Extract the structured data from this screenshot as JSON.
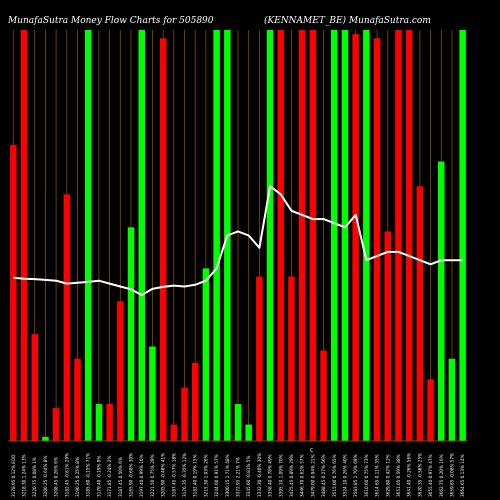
{
  "header": {
    "left": "MunafaSutra  Money  Flow  Charts for 505890",
    "right": "(KENNAMET_BE)  MunafaSutra.com"
  },
  "chart_data": {
    "type": "bar",
    "title": "MunafaSutra  Money  Flow  Charts for 505890",
    "subtitle": "(KENNAMET_BE)  MunafaSutra.com",
    "categories": [
      "3178.95 0.12% EOD",
      "3218.30 1.24% 13%",
      "3220.75 0.08% 1%",
      "3200.25 -0.64% 8%",
      "3208.45 0.26% 6%",
      "3182.45 -0.81% 29%",
      "3190.25 0.25% 8%",
      "3185.60 -0.15% 71%",
      "3179.40 -0.19% 9%",
      "3171.85 -0.24% 2%",
      "3187.45 0.50% 6%",
      "3165.90 -0.68% 30%",
      "3197.40 0.99% 16%",
      "3221.50 0.75% 29%",
      "3205.90 -0.48% 41%",
      "3187.45 -0.57% 18%",
      "3176.35 -0.35% 12%",
      "3182.40 0.19% 15%",
      "3215.30 1.03% 26%",
      "3244.60 0.91% 57%",
      "3300.15 1.71% 48%",
      "3372.95 2.21% 7%",
      "3345.60 -0.81% 5%",
      "3332.30 -0.40% 30%",
      "3358.40 0.78% 49%",
      "3395.10 1.09% 70%",
      "3425.45 0.89% 29%",
      "3446.70 0.62% 57%",
      "3479.00 0.94% 21%",
      "3488.45 0.27% 56%",
      "3515.00 0.76% 65%",
      "3524.10 0.26% 40%",
      "3583.85 1.70% 69%",
      "3610.60 0.75% 73%",
      "3614.65 0.11% 35%",
      "3629.80 0.42% 12%",
      "3651.05 0.59% 38%",
      "3641.40 -0.26% 56%",
      "3620.35 -0.58% 25%",
      "3655.40 0.97% 47%",
      "3662.75 0.20% 16%",
      "3659.85 -0.08% 57%",
      "3664.65 0.13% 14%"
    ],
    "values": [
      0.72,
      1.0,
      0.26,
      0.01,
      0.08,
      0.6,
      0.2,
      1.0,
      0.09,
      0.09,
      0.34,
      0.52,
      1.0,
      0.23,
      0.98,
      0.04,
      0.13,
      0.19,
      0.42,
      1.0,
      1.0,
      0.09,
      0.04,
      0.4,
      1.0,
      1.0,
      0.4,
      1.0,
      1.0,
      0.22,
      1.0,
      1.0,
      0.99,
      1.0,
      0.98,
      0.51,
      1.0,
      1.0,
      0.62,
      0.15,
      0.68,
      0.2,
      1.0
    ],
    "colors": [
      "red",
      "red",
      "red",
      "green",
      "red",
      "red",
      "red",
      "green",
      "green",
      "red",
      "red",
      "green",
      "green",
      "green",
      "red",
      "red",
      "red",
      "red",
      "green",
      "green",
      "green",
      "green",
      "green",
      "red",
      "green",
      "red",
      "red",
      "red",
      "red",
      "red",
      "green",
      "green",
      "red",
      "green",
      "red",
      "red",
      "red",
      "red",
      "red",
      "red",
      "green",
      "green",
      "green"
    ],
    "price_line": [
      0.397,
      0.395,
      0.394,
      0.392,
      0.39,
      0.383,
      0.385,
      0.387,
      0.39,
      0.383,
      0.376,
      0.369,
      0.355,
      0.37,
      0.375,
      0.378,
      0.376,
      0.38,
      0.39,
      0.42,
      0.5,
      0.51,
      0.5,
      0.47,
      0.62,
      0.6,
      0.56,
      0.55,
      0.54,
      0.54,
      0.53,
      0.52,
      0.55,
      0.44,
      0.45,
      0.46,
      0.46,
      0.45,
      0.44,
      0.43,
      0.44,
      0.44,
      0.44
    ],
    "ylim": [
      0,
      1
    ],
    "grid": "vertical",
    "legend": "none",
    "series_colors": {
      "green": "#00ff00",
      "red": "#ff0000",
      "line": "#ffffff",
      "grid": "#8a4a00"
    }
  }
}
